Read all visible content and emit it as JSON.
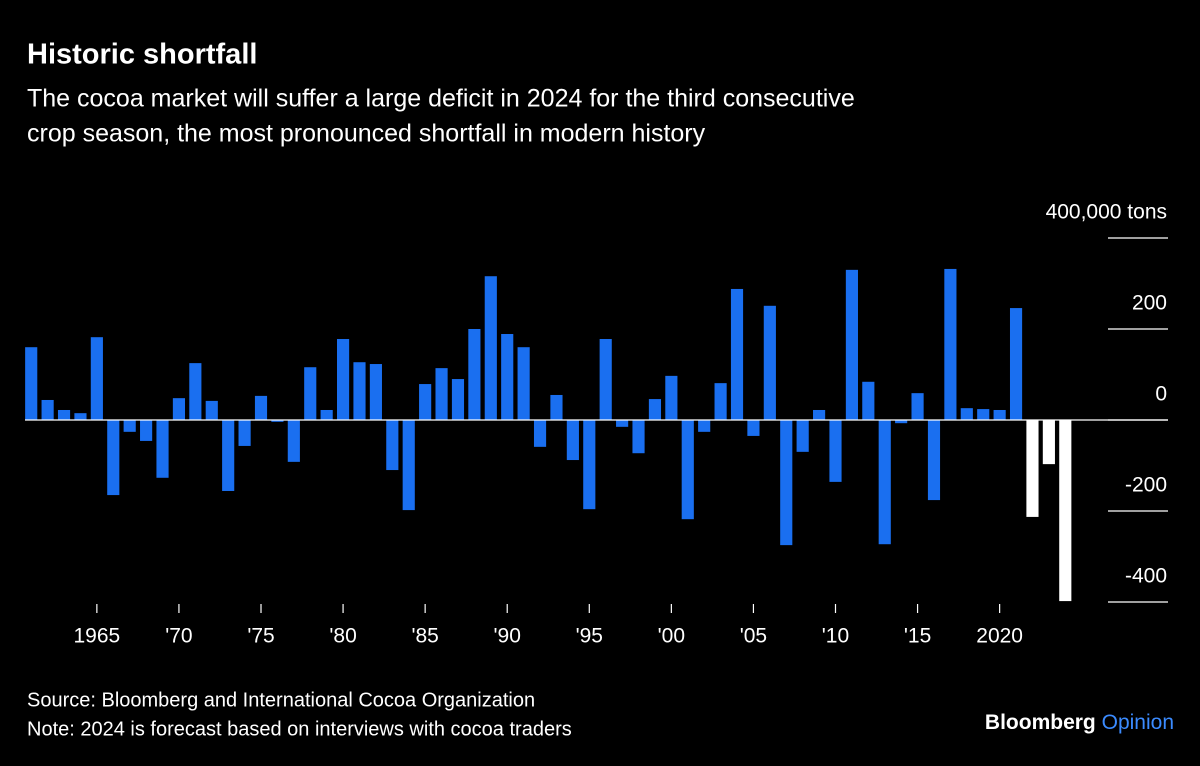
{
  "chart_data": {
    "type": "bar",
    "title": "Historic shortfall",
    "subtitle": [
      "The cocoa market will suffer a large deficit in 2024 for the third consecutive",
      "crop season, the most pronounced shortfall in modern history"
    ],
    "x": [
      1961,
      1962,
      1963,
      1964,
      1965,
      1966,
      1967,
      1968,
      1969,
      1970,
      1971,
      1972,
      1973,
      1974,
      1975,
      1976,
      1977,
      1978,
      1979,
      1980,
      1981,
      1982,
      1983,
      1984,
      1985,
      1986,
      1987,
      1988,
      1989,
      1990,
      1991,
      1992,
      1993,
      1994,
      1995,
      1996,
      1997,
      1998,
      1999,
      2000,
      2001,
      2002,
      2003,
      2004,
      2005,
      2006,
      2007,
      2008,
      2009,
      2010,
      2011,
      2012,
      2013,
      2014,
      2015,
      2016,
      2017,
      2018,
      2019,
      2020,
      2021,
      2022,
      2023,
      2024
    ],
    "values": [
      160,
      44,
      22,
      15,
      182,
      -165,
      -26,
      -46,
      -127,
      48,
      125,
      42,
      -156,
      -57,
      53,
      -4,
      -92,
      116,
      22,
      178,
      127,
      123,
      -110,
      -198,
      79,
      114,
      90,
      200,
      316,
      189,
      160,
      -59,
      55,
      -88,
      -196,
      178,
      -15,
      -73,
      46,
      97,
      -218,
      -26,
      81,
      288,
      -35,
      251,
      -275,
      -70,
      22,
      -136,
      330,
      84,
      -273,
      -7,
      59,
      -176,
      332,
      26,
      24,
      22,
      246,
      -213,
      -97,
      -398
    ],
    "colors": [
      "#1a6ff0",
      "#1a6ff0",
      "#1a6ff0",
      "#1a6ff0",
      "#1a6ff0",
      "#1a6ff0",
      "#1a6ff0",
      "#1a6ff0",
      "#1a6ff0",
      "#1a6ff0",
      "#1a6ff0",
      "#1a6ff0",
      "#1a6ff0",
      "#1a6ff0",
      "#1a6ff0",
      "#1a6ff0",
      "#1a6ff0",
      "#1a6ff0",
      "#1a6ff0",
      "#1a6ff0",
      "#1a6ff0",
      "#1a6ff0",
      "#1a6ff0",
      "#1a6ff0",
      "#1a6ff0",
      "#1a6ff0",
      "#1a6ff0",
      "#1a6ff0",
      "#1a6ff0",
      "#1a6ff0",
      "#1a6ff0",
      "#1a6ff0",
      "#1a6ff0",
      "#1a6ff0",
      "#1a6ff0",
      "#1a6ff0",
      "#1a6ff0",
      "#1a6ff0",
      "#1a6ff0",
      "#1a6ff0",
      "#1a6ff0",
      "#1a6ff0",
      "#1a6ff0",
      "#1a6ff0",
      "#1a6ff0",
      "#1a6ff0",
      "#1a6ff0",
      "#1a6ff0",
      "#1a6ff0",
      "#1a6ff0",
      "#1a6ff0",
      "#1a6ff0",
      "#1a6ff0",
      "#1a6ff0",
      "#1a6ff0",
      "#1a6ff0",
      "#1a6ff0",
      "#1a6ff0",
      "#1a6ff0",
      "#1a6ff0",
      "#1a6ff0",
      "#ffffff",
      "#ffffff",
      "#ffffff"
    ],
    "xlim": [
      1960.5,
      2024.5
    ],
    "xticks": [
      1965,
      {
        "value": 1970,
        "label": "'70"
      },
      {
        "value": 1975,
        "label": "'75"
      },
      {
        "value": 1980,
        "label": "'80"
      },
      {
        "value": 1985,
        "label": "'85"
      },
      {
        "value": 1990,
        "label": "'90"
      },
      {
        "value": 1995,
        "label": "'95"
      },
      {
        "value": 2000,
        "label": "'00"
      },
      {
        "value": 2005,
        "label": "'05"
      },
      {
        "value": 2010,
        "label": "'10"
      },
      {
        "value": 2015,
        "label": "'15"
      },
      2020
    ],
    "ylim": [
      -400,
      400
    ],
    "yticks": [
      {
        "value": 400,
        "label": "400,000 tons"
      },
      200,
      0,
      -200,
      -400
    ],
    "source": "Source: Bloomberg and International Cocoa Organization",
    "note": "Note: 2024 is forecast based on interviews with cocoa traders",
    "brand": [
      "Bloomberg",
      "Opinion"
    ]
  }
}
